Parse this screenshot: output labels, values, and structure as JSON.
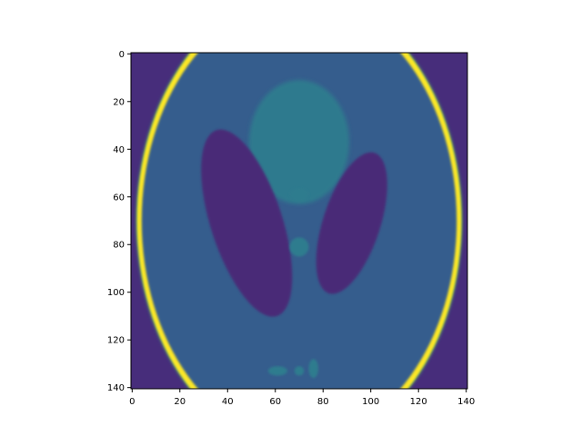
{
  "chart_data": {
    "type": "heatmap",
    "title": "",
    "xlabel": "",
    "ylabel": "",
    "image_shape": [
      141,
      141
    ],
    "xlim": [
      -0.5,
      140.5
    ],
    "ylim": [
      140.5,
      -0.5
    ],
    "y_axis_inverted": true,
    "colormap": "viridis",
    "value_range": [
      0,
      1
    ],
    "x_ticks": [
      0,
      20,
      40,
      60,
      80,
      100,
      120,
      140
    ],
    "x_tick_labels": [
      "0",
      "20",
      "40",
      "60",
      "80",
      "100",
      "120",
      "140"
    ],
    "y_ticks": [
      0,
      20,
      40,
      60,
      80,
      100,
      120,
      140
    ],
    "y_tick_labels": [
      "0",
      "20",
      "40",
      "60",
      "80",
      "100",
      "120",
      "140"
    ],
    "grid": false,
    "regions": [
      {
        "shape": "ellipse",
        "center": [
          70,
          70
        ],
        "semi_axes": [
          68,
          95
        ],
        "angle": 0,
        "value": 0.75,
        "note": "bright outer ring"
      },
      {
        "shape": "ellipse",
        "center": [
          70,
          70
        ],
        "semi_axes": [
          66,
          92
        ],
        "angle": 0,
        "value": 0.3,
        "note": "head interior"
      },
      {
        "shape": "ellipse",
        "center": [
          70,
          37
        ],
        "semi_axes": [
          21,
          26
        ],
        "angle": 0,
        "value": 0.42,
        "note": "upper blob"
      },
      {
        "shape": "ellipse",
        "center": [
          48,
          71
        ],
        "semi_axes": [
          15,
          41
        ],
        "angle": -18,
        "value": 0.12,
        "note": "left dark lobe"
      },
      {
        "shape": "ellipse",
        "center": [
          92,
          71
        ],
        "semi_axes": [
          12,
          31
        ],
        "angle": 18,
        "value": 0.12,
        "note": "right dark lobe"
      },
      {
        "shape": "ellipse",
        "center": [
          70,
          59
        ],
        "semi_axes": [
          4,
          3
        ],
        "angle": 0,
        "value": 0.42,
        "note": "small spot"
      },
      {
        "shape": "ellipse",
        "center": [
          70,
          81
        ],
        "semi_axes": [
          4,
          4
        ],
        "angle": 0,
        "value": 0.4,
        "note": "small spot"
      },
      {
        "shape": "ellipse",
        "center": [
          61,
          133
        ],
        "semi_axes": [
          4,
          2
        ],
        "angle": 0,
        "value": 0.4,
        "note": "small spot"
      },
      {
        "shape": "ellipse",
        "center": [
          70,
          133
        ],
        "semi_axes": [
          2,
          2
        ],
        "angle": 0,
        "value": 0.4,
        "note": "small spot"
      },
      {
        "shape": "ellipse",
        "center": [
          76,
          132
        ],
        "semi_axes": [
          2,
          4
        ],
        "angle": 0,
        "value": 0.4,
        "note": "small spot"
      }
    ],
    "background_value": 0.05,
    "colors": {
      "background": "#472d7b",
      "interior": "#365d8d",
      "upper_blob": "#2f7a8e",
      "dark_lobe": "#482c77",
      "small_spot": "#2f7b8e",
      "ring_yellow": "#fde725",
      "ring_green": "#3bbb75"
    }
  }
}
